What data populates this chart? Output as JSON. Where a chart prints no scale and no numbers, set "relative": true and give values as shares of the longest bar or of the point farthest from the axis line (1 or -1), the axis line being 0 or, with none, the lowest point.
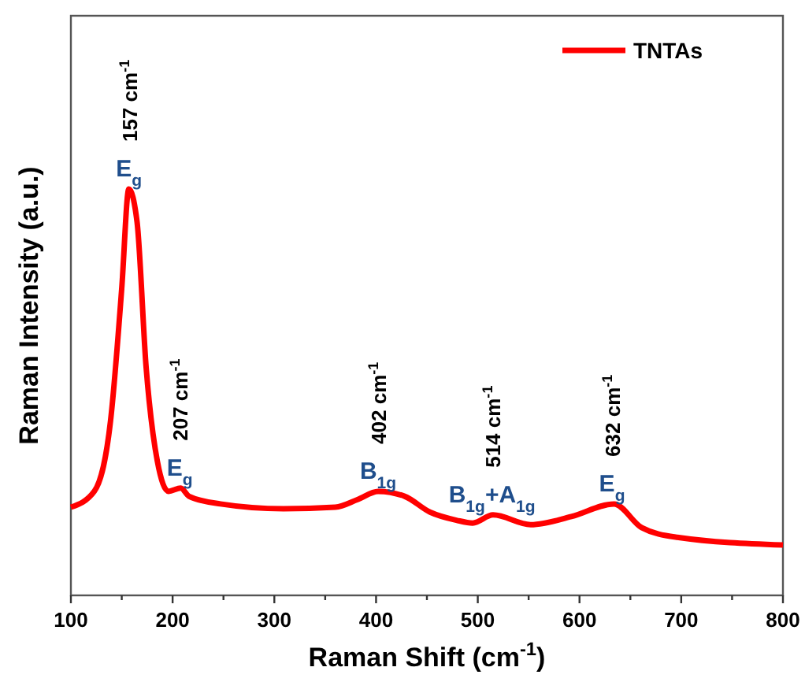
{
  "chart_data": {
    "type": "line",
    "xlabel": "Raman Shift (cm$^{-1}$)",
    "ylabel": "Raman Intensity (a.u.)",
    "relative": true,
    "legend": "top right",
    "grid": false,
    "xlim": [
      100,
      800
    ],
    "xticks": [
      100,
      {
        "value": 150,
        "label": null
      },
      200,
      {
        "value": 250,
        "label": null
      },
      300,
      {
        "value": 350,
        "label": null
      },
      400,
      {
        "value": 450,
        "label": null
      },
      500,
      {
        "value": 550,
        "label": null
      },
      600,
      {
        "value": 650,
        "label": null
      },
      700,
      {
        "value": 750,
        "label": null
      },
      800
    ],
    "series": [
      {
        "name": "TNTAs",
        "color": "#ff0000",
        "x": [
          100,
          123,
          139,
          150,
          157,
          165,
          174,
          185,
          196,
          208,
          216,
          247,
          309,
          360,
          382,
          402,
          428,
          453,
          479,
          495,
          515,
          552,
          592,
          634,
          661,
          696,
          800
        ],
        "values": [
          0.217,
          0.256,
          0.43,
          0.756,
          1.0,
          0.92,
          0.56,
          0.33,
          0.256,
          0.264,
          0.244,
          0.225,
          0.213,
          0.217,
          0.236,
          0.256,
          0.244,
          0.205,
          0.185,
          0.178,
          0.198,
          0.174,
          0.194,
          0.225,
          0.167,
          0.143,
          0.124
        ]
      }
    ],
    "annotations": [
      {
        "text": "157 cm$^{-1}$",
        "x": 157,
        "y": 1.0
      },
      {
        "text": "E$_{g}$",
        "x": 157,
        "y": 1.0
      },
      {
        "text": "207 cm$^{-1}$",
        "x": 207,
        "y": 0.264
      },
      {
        "text": "E$_{g}$",
        "x": 207,
        "y": 0.264
      },
      {
        "text": "402 cm$^{-1}$",
        "x": 402,
        "y": 0.256
      },
      {
        "text": "B$_{1g}$",
        "x": 402,
        "y": 0.256
      },
      {
        "text": "514 cm$^{-1}$",
        "x": 514,
        "y": 0.198
      },
      {
        "text": "B$_{1g}$+A$_{1g}$",
        "x": 514,
        "y": 0.198
      },
      {
        "text": "632 cm$^{-1}$",
        "x": 632,
        "y": 0.225
      },
      {
        "text": "E$_{g}$",
        "x": 632,
        "y": 0.225
      }
    ]
  }
}
